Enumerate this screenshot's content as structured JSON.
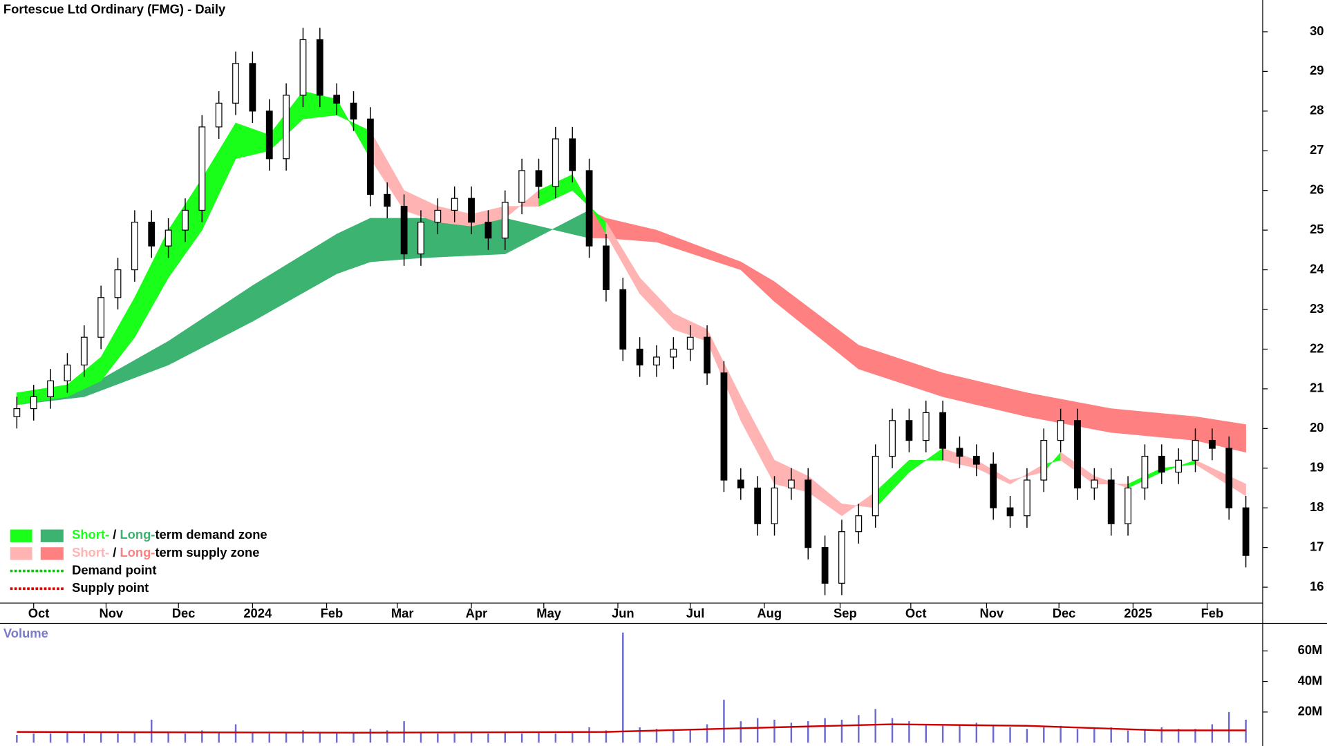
{
  "chart_data": [
    {
      "type": "candlestick",
      "title": "Fortescue Ltd Ordinary (FMG) - Daily",
      "xlim": [
        -1,
        74
      ],
      "xticks": [
        {
          "value": 1,
          "label": "Oct"
        },
        {
          "value": 5.3,
          "label": "Nov"
        },
        {
          "value": 9.6,
          "label": "Dec"
        },
        {
          "value": 14,
          "label": "2024"
        },
        {
          "value": 18.4,
          "label": "Feb"
        },
        {
          "value": 22.6,
          "label": "Mar"
        },
        {
          "value": 27,
          "label": "Apr"
        },
        {
          "value": 31.3,
          "label": "May"
        },
        {
          "value": 35.7,
          "label": "Jun"
        },
        {
          "value": 40,
          "label": "Jul"
        },
        {
          "value": 44.4,
          "label": "Aug"
        },
        {
          "value": 48.9,
          "label": "Sep"
        },
        {
          "value": 53.1,
          "label": "Oct"
        },
        {
          "value": 57.6,
          "label": "Nov"
        },
        {
          "value": 61.9,
          "label": "Dec"
        },
        {
          "value": 66.3,
          "label": "2025"
        },
        {
          "value": 70.7,
          "label": "Feb"
        }
      ],
      "ylim": [
        15.6,
        30.8
      ],
      "yticks": [
        16,
        17,
        18,
        19,
        20,
        21,
        22,
        23,
        24,
        25,
        26,
        27,
        28,
        29,
        30
      ],
      "open": [
        20.3,
        20.5,
        20.8,
        21.2,
        21.6,
        22.3,
        23.3,
        24.0,
        25.2,
        24.6,
        25.0,
        25.5,
        27.6,
        28.2,
        29.2,
        28.0,
        26.8,
        28.4,
        29.8,
        28.4,
        28.2,
        27.8,
        25.9,
        25.6,
        24.4,
        25.2,
        25.5,
        25.8,
        25.2,
        24.8,
        25.7,
        26.5,
        26.1,
        27.3,
        26.5,
        24.6,
        23.5,
        22.0,
        21.6,
        21.8,
        22.0,
        22.3,
        21.4,
        18.7,
        18.5,
        17.6,
        18.5,
        18.7,
        17.0,
        16.1,
        17.4,
        17.8,
        19.3,
        20.2,
        19.7,
        20.4,
        19.5,
        19.3,
        19.1,
        18.0,
        17.8,
        18.7,
        19.7,
        20.2,
        18.5,
        18.7,
        17.6,
        18.5,
        19.3,
        18.9,
        19.2,
        19.7,
        19.5,
        18.0
      ],
      "high": [
        20.8,
        21.1,
        21.5,
        21.9,
        22.6,
        23.6,
        24.3,
        25.5,
        25.5,
        25.3,
        25.8,
        27.9,
        28.5,
        29.5,
        29.5,
        28.3,
        28.7,
        30.1,
        30.1,
        28.7,
        28.5,
        28.1,
        26.2,
        25.9,
        25.5,
        25.8,
        26.1,
        26.1,
        25.5,
        26.0,
        26.8,
        26.8,
        27.6,
        27.6,
        26.8,
        24.9,
        23.8,
        22.3,
        22.1,
        22.3,
        22.6,
        22.6,
        21.7,
        19.0,
        18.8,
        18.8,
        19.0,
        19.0,
        17.3,
        17.7,
        18.1,
        19.6,
        20.5,
        20.5,
        20.7,
        20.7,
        19.8,
        19.6,
        19.4,
        18.3,
        19.0,
        20.0,
        20.5,
        20.5,
        19.0,
        19.0,
        18.8,
        19.6,
        19.6,
        19.5,
        20.0,
        20.0,
        19.8,
        18.3
      ],
      "low": [
        20.0,
        20.2,
        20.5,
        20.9,
        21.3,
        22.0,
        23.0,
        23.7,
        24.3,
        24.3,
        24.7,
        25.2,
        27.3,
        27.9,
        27.7,
        26.5,
        26.5,
        28.1,
        28.1,
        27.9,
        27.5,
        25.6,
        25.3,
        24.1,
        24.1,
        24.9,
        25.2,
        24.9,
        24.5,
        24.5,
        25.4,
        25.8,
        25.8,
        26.2,
        24.3,
        23.2,
        21.7,
        21.3,
        21.3,
        21.5,
        21.7,
        21.1,
        18.4,
        18.2,
        17.3,
        17.3,
        18.2,
        16.7,
        15.8,
        15.8,
        17.1,
        17.5,
        19.0,
        19.4,
        19.4,
        19.2,
        19.0,
        18.8,
        17.7,
        17.5,
        17.5,
        18.4,
        19.4,
        18.2,
        18.2,
        17.3,
        17.3,
        18.2,
        18.6,
        18.6,
        18.9,
        19.2,
        17.7,
        16.5
      ],
      "close": [
        20.5,
        20.8,
        21.2,
        21.6,
        22.3,
        23.3,
        24.0,
        25.2,
        24.6,
        25.0,
        25.5,
        27.6,
        28.2,
        29.2,
        28.0,
        26.8,
        28.4,
        29.8,
        28.4,
        28.2,
        27.8,
        25.9,
        25.6,
        24.4,
        25.2,
        25.5,
        25.8,
        25.2,
        24.8,
        25.7,
        26.5,
        26.1,
        27.3,
        26.5,
        24.6,
        23.5,
        22.0,
        21.6,
        21.8,
        22.0,
        22.3,
        21.4,
        18.7,
        18.5,
        17.6,
        18.5,
        18.7,
        17.0,
        16.1,
        17.4,
        17.8,
        19.3,
        20.2,
        19.7,
        20.4,
        19.5,
        19.3,
        19.1,
        18.0,
        17.8,
        18.7,
        19.7,
        20.2,
        18.5,
        18.7,
        17.6,
        18.5,
        19.3,
        18.9,
        19.2,
        19.7,
        19.5,
        18.0,
        16.8
      ],
      "bands": [
        {
          "x": [
            0,
            4,
            9,
            14,
            19,
            21,
            24,
            29,
            34,
            35,
            38,
            43,
            45,
            50,
            55,
            60,
            65,
            70,
            73
          ],
          "fast": [
            20.9,
            21.0,
            22.2,
            23.6,
            24.9,
            25.3,
            25.3,
            25.3,
            24.8,
            24.8,
            24.7,
            24.0,
            23.2,
            21.5,
            20.8,
            20.3,
            19.9,
            19.7,
            19.4
          ],
          "slow": [
            20.6,
            20.8,
            21.6,
            22.7,
            23.9,
            24.2,
            24.3,
            24.4,
            25.5,
            25.3,
            25.0,
            24.2,
            23.7,
            22.1,
            21.4,
            20.9,
            20.5,
            20.3,
            20.1
          ],
          "demand_color": "#3cb371",
          "supply_color": "#ff8080"
        },
        {
          "x": [
            0,
            3,
            5,
            7,
            9,
            11,
            13,
            15,
            17,
            19,
            21,
            23,
            25,
            27,
            29,
            31,
            33,
            35,
            37,
            39,
            41,
            43,
            45,
            47,
            49,
            51,
            53,
            55,
            57,
            59,
            61,
            62,
            64,
            66,
            68,
            70,
            73
          ],
          "fast": [
            20.9,
            21.1,
            21.8,
            23.3,
            25.0,
            26.3,
            27.7,
            27.4,
            28.5,
            28.3,
            26.8,
            25.5,
            25.2,
            25.1,
            25.3,
            26.0,
            26.4,
            24.9,
            23.4,
            22.5,
            22.2,
            20.2,
            18.6,
            18.4,
            17.8,
            18.4,
            19.2,
            19.2,
            19.0,
            18.6,
            19.1,
            19.2,
            18.6,
            18.6,
            19.0,
            19.1,
            18.3
          ],
          "slow": [
            20.6,
            20.8,
            21.2,
            22.3,
            23.8,
            25.0,
            26.8,
            27.0,
            27.8,
            27.9,
            27.5,
            26.0,
            25.6,
            25.4,
            25.6,
            25.6,
            26.0,
            25.2,
            23.8,
            22.9,
            22.5,
            20.8,
            19.2,
            18.8,
            18.1,
            18.0,
            18.9,
            19.5,
            19.2,
            18.7,
            18.9,
            19.4,
            18.8,
            18.5,
            18.9,
            19.2,
            18.6
          ],
          "demand_color": "#1aff1a",
          "supply_color": "#ffb3b3"
        }
      ],
      "legend": [
        {
          "label": [
            "Short-",
            " / ",
            "Long-",
            "term demand zone"
          ],
          "colors": [
            "#1aff1a",
            "#3cb371"
          ]
        },
        {
          "label": [
            "Short-",
            " / ",
            "Long-",
            "term supply zone"
          ],
          "colors": [
            "#ffb3b3",
            "#ff8080"
          ]
        },
        {
          "label": [
            "Demand point"
          ],
          "colors": [
            "#00cc00"
          ]
        },
        {
          "label": [
            "Supply point"
          ],
          "colors": [
            "#dd0000"
          ]
        }
      ]
    },
    {
      "type": "bar",
      "title": "Volume",
      "color": "#6a6ad0",
      "ylim": [
        0,
        78000000
      ],
      "yticks": [
        {
          "value": 20000000,
          "label": "20M"
        },
        {
          "value": 40000000,
          "label": "40M"
        },
        {
          "value": 60000000,
          "label": "60M"
        }
      ],
      "values": [
        5000000,
        6000000,
        6000000,
        7000000,
        6000000,
        7000000,
        6000000,
        7000000,
        15000000,
        7000000,
        6000000,
        8000000,
        7000000,
        12000000,
        7000000,
        6000000,
        7000000,
        8000000,
        7000000,
        6000000,
        7000000,
        9000000,
        8000000,
        14000000,
        7000000,
        6000000,
        6000000,
        7000000,
        6000000,
        7000000,
        6000000,
        7000000,
        6000000,
        7000000,
        10000000,
        8000000,
        72000000,
        10000000,
        9000000,
        8000000,
        9000000,
        12000000,
        28000000,
        14000000,
        16000000,
        15000000,
        13000000,
        14000000,
        16000000,
        15000000,
        18000000,
        22000000,
        16000000,
        14000000,
        12000000,
        11000000,
        12000000,
        13000000,
        11000000,
        10000000,
        9000000,
        10000000,
        11000000,
        9000000,
        9000000,
        10000000,
        8000000,
        9000000,
        10000000,
        9000000,
        9000000,
        12000000,
        20000000,
        15000000
      ],
      "average": {
        "color": "#cc0000",
        "x": [
          0,
          20,
          35,
          45,
          52,
          60,
          68,
          73
        ],
        "values": [
          7000000,
          6500000,
          7000000,
          10000000,
          12000000,
          11000000,
          8000000,
          8000000
        ]
      }
    }
  ]
}
